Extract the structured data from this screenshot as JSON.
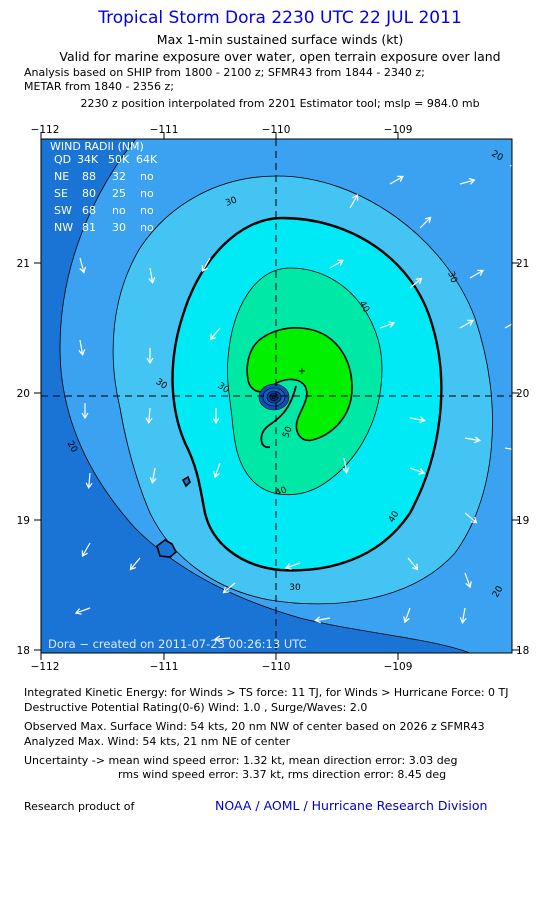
{
  "title": "Tropical Storm Dora 2230 UTC 22 JUL 2011",
  "subtitle1": "Max 1-min sustained surface winds (kt)",
  "subtitle2": "Valid for marine exposure over water, open terrain exposure over land",
  "analysis_line1": "Analysis based on SHIP from 1800 - 2100 z; SFMR43 from 1844 - 2340 z;",
  "analysis_line2": "METAR from 1840 - 2356 z;",
  "position_line": "2230 z position interpolated from 2201 Estimator tool; mslp = 984.0 mb",
  "map": {
    "lon_labels": [
      "−112",
      "−111",
      "−110",
      "−109"
    ],
    "lat_labels": [
      "21",
      "20",
      "19",
      "18"
    ],
    "contour_labels": [
      "20",
      "30",
      "30",
      "30",
      "30",
      "30",
      "40",
      "40",
      "40",
      "50",
      "20",
      "20"
    ],
    "credit": "Dora − created on 2011-07-23 00:26:13 UTC",
    "colors": {
      "band_lt20": "#1a74d6",
      "band_20_30": "#3aa2f0",
      "band_30_34": "#44c4f2",
      "band_34_40": "#00eaf6",
      "band_40_50": "#00e8a6",
      "band_50_64": "#00f000",
      "grid": "#000000"
    },
    "wind_radii_table": {
      "title": "WIND RADII (NM)",
      "header": [
        "QD",
        "34K",
        "50K",
        "64K"
      ],
      "rows": [
        [
          "NE",
          "88",
          "32",
          "no"
        ],
        [
          "SE",
          "80",
          "25",
          "no"
        ],
        [
          "SW",
          "68",
          "no",
          "no"
        ],
        [
          "NW",
          "81",
          "30",
          "no"
        ]
      ]
    }
  },
  "footer": {
    "ike": "Integrated Kinetic Energy:  for Winds > TS force: 11 TJ,  for Winds > Hurricane Force: 0 TJ",
    "dpr": "Destructive Potential Rating(0-6)   Wind: 1.0 , Surge/Waves: 2.0",
    "observed": "Observed Max. Surface Wind: 54 kts, 20 nm NW of center based on 2026 z SFMR43",
    "analyzed": "Analyzed Max. Wind: 54 kts, 21 nm NE of center",
    "uncertainty1": "Uncertainty -> mean wind speed error: 1.32 kt,   mean direction error: 3.03 deg",
    "uncertainty2": "rms wind speed error: 3.37 kt,   rms direction error: 8.45 deg",
    "research": "Research product of",
    "org": "NOAA / AOML / Hurricane Research Division"
  }
}
